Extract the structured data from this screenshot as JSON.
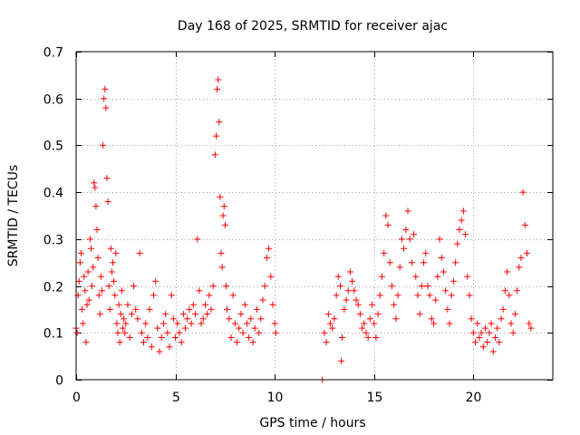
{
  "chart_data": {
    "type": "scatter",
    "title": "Day 168 of 2025, SRMTID for receiver ajac",
    "xlabel": "GPS time / hours",
    "ylabel": "SRMTID / TECUs",
    "xlim": [
      0,
      24
    ],
    "ylim": [
      0,
      0.7
    ],
    "xticks": [
      0,
      5,
      10,
      15,
      20
    ],
    "xtick_labels": [
      "0",
      "5",
      "10",
      "15",
      "20"
    ],
    "yticks": [
      0,
      0.1,
      0.2,
      0.3,
      0.4,
      0.5,
      0.6,
      0.7
    ],
    "ytick_labels": [
      "0",
      "0.1",
      "0.2",
      "0.3",
      "0.4",
      "0.5",
      "0.6",
      "0.7"
    ],
    "grid": true,
    "marker": "plus",
    "color": "#ff0000",
    "series": [
      {
        "name": "SRMTID",
        "points": [
          [
            0.0,
            0.11
          ],
          [
            0.05,
            0.1
          ],
          [
            0.1,
            0.18
          ],
          [
            0.15,
            0.21
          ],
          [
            0.2,
            0.25
          ],
          [
            0.25,
            0.27
          ],
          [
            0.3,
            0.15
          ],
          [
            0.35,
            0.12
          ],
          [
            0.4,
            0.22
          ],
          [
            0.45,
            0.19
          ],
          [
            0.5,
            0.08
          ],
          [
            0.55,
            0.16
          ],
          [
            0.6,
            0.23
          ],
          [
            0.65,
            0.17
          ],
          [
            0.7,
            0.3
          ],
          [
            0.75,
            0.28
          ],
          [
            0.8,
            0.2
          ],
          [
            0.85,
            0.24
          ],
          [
            0.9,
            0.42
          ],
          [
            0.95,
            0.41
          ],
          [
            1.0,
            0.37
          ],
          [
            1.05,
            0.32
          ],
          [
            1.1,
            0.26
          ],
          [
            1.15,
            0.18
          ],
          [
            1.2,
            0.14
          ],
          [
            1.25,
            0.22
          ],
          [
            1.3,
            0.19
          ],
          [
            1.35,
            0.5
          ],
          [
            1.4,
            0.6
          ],
          [
            1.45,
            0.62
          ],
          [
            1.5,
            0.58
          ],
          [
            1.55,
            0.43
          ],
          [
            1.6,
            0.38
          ],
          [
            1.65,
            0.2
          ],
          [
            1.7,
            0.15
          ],
          [
            1.75,
            0.28
          ],
          [
            1.8,
            0.23
          ],
          [
            1.85,
            0.25
          ],
          [
            1.9,
            0.21
          ],
          [
            1.95,
            0.18
          ],
          [
            2.0,
            0.27
          ],
          [
            2.05,
            0.12
          ],
          [
            2.1,
            0.1
          ],
          [
            2.15,
            0.16
          ],
          [
            2.2,
            0.08
          ],
          [
            2.25,
            0.14
          ],
          [
            2.3,
            0.19
          ],
          [
            2.35,
            0.11
          ],
          [
            2.4,
            0.13
          ],
          [
            2.45,
            0.1
          ],
          [
            2.5,
            0.12
          ],
          [
            2.6,
            0.16
          ],
          [
            2.7,
            0.09
          ],
          [
            2.8,
            0.14
          ],
          [
            2.9,
            0.2
          ],
          [
            3.0,
            0.15
          ],
          [
            3.1,
            0.13
          ],
          [
            3.2,
            0.27
          ],
          [
            3.3,
            0.1
          ],
          [
            3.4,
            0.08
          ],
          [
            3.5,
            0.12
          ],
          [
            3.6,
            0.09
          ],
          [
            3.7,
            0.15
          ],
          [
            3.8,
            0.07
          ],
          [
            3.9,
            0.18
          ],
          [
            4.0,
            0.21
          ],
          [
            4.1,
            0.11
          ],
          [
            4.2,
            0.06
          ],
          [
            4.3,
            0.09
          ],
          [
            4.4,
            0.12
          ],
          [
            4.5,
            0.14
          ],
          [
            4.6,
            0.1
          ],
          [
            4.7,
            0.07
          ],
          [
            4.8,
            0.18
          ],
          [
            4.9,
            0.13
          ],
          [
            5.0,
            0.09
          ],
          [
            5.1,
            0.12
          ],
          [
            5.2,
            0.1
          ],
          [
            5.3,
            0.08
          ],
          [
            5.4,
            0.14
          ],
          [
            5.5,
            0.11
          ],
          [
            5.6,
            0.13
          ],
          [
            5.7,
            0.15
          ],
          [
            5.8,
            0.12
          ],
          [
            5.9,
            0.16
          ],
          [
            6.0,
            0.14
          ],
          [
            6.1,
            0.3
          ],
          [
            6.2,
            0.19
          ],
          [
            6.3,
            0.12
          ],
          [
            6.4,
            0.13
          ],
          [
            6.5,
            0.16
          ],
          [
            6.6,
            0.14
          ],
          [
            6.7,
            0.18
          ],
          [
            6.8,
            0.15
          ],
          [
            6.9,
            0.2
          ],
          [
            7.0,
            0.48
          ],
          [
            7.05,
            0.52
          ],
          [
            7.1,
            0.62
          ],
          [
            7.15,
            0.64
          ],
          [
            7.2,
            0.55
          ],
          [
            7.25,
            0.39
          ],
          [
            7.3,
            0.27
          ],
          [
            7.35,
            0.24
          ],
          [
            7.4,
            0.35
          ],
          [
            7.45,
            0.37
          ],
          [
            7.5,
            0.33
          ],
          [
            7.55,
            0.2
          ],
          [
            7.6,
            0.15
          ],
          [
            7.7,
            0.13
          ],
          [
            7.8,
            0.09
          ],
          [
            7.9,
            0.18
          ],
          [
            8.0,
            0.12
          ],
          [
            8.1,
            0.08
          ],
          [
            8.2,
            0.11
          ],
          [
            8.3,
            0.14
          ],
          [
            8.4,
            0.1
          ],
          [
            8.5,
            0.16
          ],
          [
            8.6,
            0.12
          ],
          [
            8.7,
            0.09
          ],
          [
            8.8,
            0.13
          ],
          [
            8.9,
            0.08
          ],
          [
            9.0,
            0.11
          ],
          [
            9.1,
            0.15
          ],
          [
            9.2,
            0.1
          ],
          [
            9.3,
            0.13
          ],
          [
            9.4,
            0.17
          ],
          [
            9.5,
            0.2
          ],
          [
            9.6,
            0.26
          ],
          [
            9.7,
            0.28
          ],
          [
            9.8,
            0.22
          ],
          [
            9.9,
            0.16
          ],
          [
            10.0,
            0.12
          ],
          [
            10.05,
            0.1
          ],
          [
            12.4,
            0.0
          ],
          [
            12.5,
            0.1
          ],
          [
            12.6,
            0.08
          ],
          [
            12.7,
            0.14
          ],
          [
            12.8,
            0.12
          ],
          [
            12.9,
            0.11
          ],
          [
            13.0,
            0.13
          ],
          [
            13.1,
            0.18
          ],
          [
            13.2,
            0.22
          ],
          [
            13.3,
            0.2
          ],
          [
            13.35,
            0.04
          ],
          [
            13.4,
            0.09
          ],
          [
            13.5,
            0.15
          ],
          [
            13.6,
            0.17
          ],
          [
            13.7,
            0.19
          ],
          [
            13.8,
            0.23
          ],
          [
            13.9,
            0.21
          ],
          [
            14.0,
            0.19
          ],
          [
            14.1,
            0.17
          ],
          [
            14.2,
            0.16
          ],
          [
            14.3,
            0.14
          ],
          [
            14.4,
            0.11
          ],
          [
            14.5,
            0.12
          ],
          [
            14.6,
            0.1
          ],
          [
            14.7,
            0.09
          ],
          [
            14.8,
            0.13
          ],
          [
            14.9,
            0.16
          ],
          [
            15.0,
            0.12
          ],
          [
            15.1,
            0.09
          ],
          [
            15.2,
            0.14
          ],
          [
            15.3,
            0.18
          ],
          [
            15.4,
            0.22
          ],
          [
            15.5,
            0.27
          ],
          [
            15.6,
            0.35
          ],
          [
            15.7,
            0.33
          ],
          [
            15.8,
            0.25
          ],
          [
            15.9,
            0.2
          ],
          [
            16.0,
            0.16
          ],
          [
            16.1,
            0.13
          ],
          [
            16.2,
            0.18
          ],
          [
            16.3,
            0.24
          ],
          [
            16.4,
            0.3
          ],
          [
            16.5,
            0.28
          ],
          [
            16.6,
            0.32
          ],
          [
            16.7,
            0.36
          ],
          [
            16.8,
            0.3
          ],
          [
            16.9,
            0.25
          ],
          [
            17.0,
            0.31
          ],
          [
            17.1,
            0.22
          ],
          [
            17.2,
            0.18
          ],
          [
            17.3,
            0.14
          ],
          [
            17.4,
            0.2
          ],
          [
            17.5,
            0.25
          ],
          [
            17.6,
            0.27
          ],
          [
            17.7,
            0.2
          ],
          [
            17.8,
            0.18
          ],
          [
            17.9,
            0.13
          ],
          [
            18.0,
            0.12
          ],
          [
            18.1,
            0.17
          ],
          [
            18.2,
            0.22
          ],
          [
            18.3,
            0.3
          ],
          [
            18.4,
            0.26
          ],
          [
            18.5,
            0.23
          ],
          [
            18.6,
            0.19
          ],
          [
            18.7,
            0.15
          ],
          [
            18.8,
            0.12
          ],
          [
            18.9,
            0.18
          ],
          [
            19.0,
            0.21
          ],
          [
            19.1,
            0.25
          ],
          [
            19.2,
            0.29
          ],
          [
            19.3,
            0.32
          ],
          [
            19.4,
            0.34
          ],
          [
            19.5,
            0.36
          ],
          [
            19.6,
            0.31
          ],
          [
            19.7,
            0.22
          ],
          [
            19.8,
            0.18
          ],
          [
            19.9,
            0.13
          ],
          [
            20.0,
            0.1
          ],
          [
            20.1,
            0.08
          ],
          [
            20.2,
            0.12
          ],
          [
            20.3,
            0.09
          ],
          [
            20.4,
            0.1
          ],
          [
            20.5,
            0.07
          ],
          [
            20.6,
            0.11
          ],
          [
            20.7,
            0.08
          ],
          [
            20.8,
            0.1
          ],
          [
            20.9,
            0.12
          ],
          [
            21.0,
            0.06
          ],
          [
            21.1,
            0.09
          ],
          [
            21.2,
            0.11
          ],
          [
            21.3,
            0.08
          ],
          [
            21.4,
            0.13
          ],
          [
            21.5,
            0.15
          ],
          [
            21.6,
            0.19
          ],
          [
            21.7,
            0.23
          ],
          [
            21.8,
            0.18
          ],
          [
            21.9,
            0.12
          ],
          [
            22.0,
            0.1
          ],
          [
            22.1,
            0.14
          ],
          [
            22.2,
            0.19
          ],
          [
            22.3,
            0.24
          ],
          [
            22.4,
            0.26
          ],
          [
            22.5,
            0.4
          ],
          [
            22.6,
            0.33
          ],
          [
            22.7,
            0.27
          ],
          [
            22.8,
            0.12
          ],
          [
            22.9,
            0.11
          ]
        ]
      }
    ]
  }
}
